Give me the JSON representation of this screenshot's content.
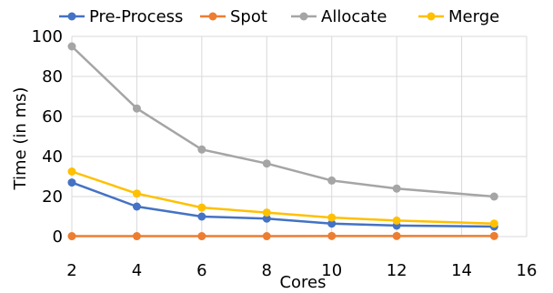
{
  "chart_data": {
    "type": "line",
    "title": "",
    "xlabel": "Cores",
    "ylabel": "Time (in ms)",
    "xlim": [
      2,
      16
    ],
    "ylim": [
      0,
      100
    ],
    "xticks": [
      "2",
      "4",
      "6",
      "8",
      "10",
      "12",
      "14",
      "16"
    ],
    "yticks": [
      "0",
      "20",
      "40",
      "60",
      "80",
      "100"
    ],
    "grid": true,
    "legend_position": "top",
    "x": [
      2,
      4,
      6,
      8,
      10,
      12,
      15
    ],
    "series": [
      {
        "name": "Pre-Process",
        "color": "#4472c4",
        "values": [
          27,
          15,
          10,
          9,
          6.5,
          5.5,
          5
        ]
      },
      {
        "name": "Spot",
        "color": "#ed7d31",
        "values": [
          0.2,
          0.2,
          0.2,
          0.2,
          0.3,
          0.3,
          0.3
        ]
      },
      {
        "name": "Allocate",
        "color": "#a5a5a5",
        "values": [
          95,
          64,
          43.5,
          36.5,
          28,
          24,
          20
        ]
      },
      {
        "name": "Merge",
        "color": "#ffc000",
        "values": [
          32.5,
          21.5,
          14.5,
          12,
          9.5,
          8,
          6.5
        ]
      }
    ]
  }
}
